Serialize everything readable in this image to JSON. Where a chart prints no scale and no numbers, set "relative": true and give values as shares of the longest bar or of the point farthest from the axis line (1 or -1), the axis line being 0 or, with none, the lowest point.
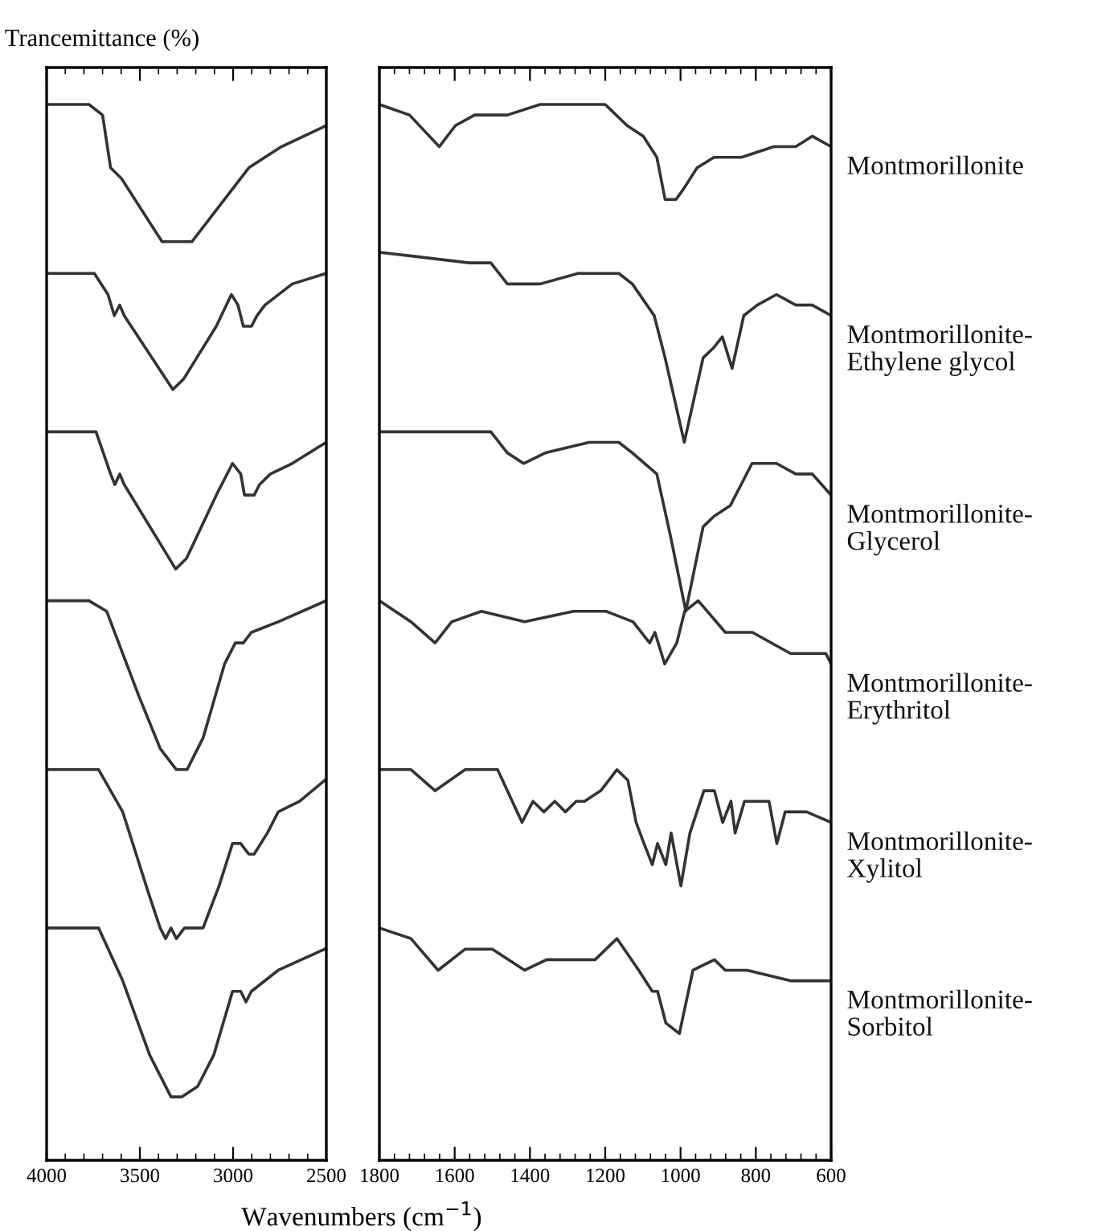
{
  "chart_data": [
    {
      "type": "line",
      "relative": true,
      "ylabel": "Trancemittance (%)",
      "xlabel": "Wavenumbers (cm$^{−1}$)",
      "xlim": [
        4000,
        2500
      ],
      "xticks": [
        4000,
        3500,
        3000,
        2500
      ],
      "grid": false,
      "legend": false,
      "series": [
        {
          "color": "#333333",
          "x": [
            4000,
            3773,
            3700,
            3657,
            3599,
            3381,
            3294,
            3221,
            3090,
            2916,
            2741,
            2500
          ],
          "values": [
            1.0,
            1.0,
            0.99,
            0.94,
            0.93,
            0.87,
            0.87,
            0.87,
            0.9,
            0.94,
            0.96,
            0.98
          ]
        },
        {
          "color": "#333333",
          "x": [
            4000,
            3744,
            3671,
            3637,
            3608,
            3584,
            3323,
            3265,
            3090,
            3009,
            2974,
            2945,
            2922,
            2901,
            2872,
            2829,
            2683,
            2500
          ],
          "values": [
            0.84,
            0.84,
            0.82,
            0.8,
            0.81,
            0.8,
            0.73,
            0.74,
            0.79,
            0.82,
            0.81,
            0.79,
            0.79,
            0.79,
            0.8,
            0.81,
            0.83,
            0.84
          ]
        },
        {
          "color": "#333333",
          "x": [
            4000,
            3735,
            3657,
            3634,
            3608,
            3584,
            3308,
            3250,
            3090,
            3003,
            2959,
            2939,
            2910,
            2887,
            2858,
            2800,
            2683,
            2500
          ],
          "values": [
            0.69,
            0.69,
            0.65,
            0.64,
            0.65,
            0.64,
            0.56,
            0.57,
            0.63,
            0.66,
            0.65,
            0.63,
            0.63,
            0.63,
            0.64,
            0.65,
            0.66,
            0.68
          ]
        },
        {
          "color": "#333333",
          "x": [
            4000,
            3773,
            3678,
            3506,
            3391,
            3304,
            3247,
            3161,
            3046,
            2988,
            2945,
            2902,
            2758,
            2500
          ],
          "values": [
            0.53,
            0.53,
            0.52,
            0.44,
            0.39,
            0.37,
            0.37,
            0.4,
            0.47,
            0.49,
            0.49,
            0.5,
            0.51,
            0.53
          ]
        },
        {
          "color": "#333333",
          "x": [
            4000,
            3721,
            3592,
            3448,
            3391,
            3362,
            3333,
            3304,
            3261,
            3161,
            3075,
            3003,
            2959,
            2916,
            2887,
            2816,
            2758,
            2643,
            2508
          ],
          "values": [
            0.37,
            0.37,
            0.33,
            0.25,
            0.22,
            0.21,
            0.22,
            0.21,
            0.22,
            0.22,
            0.26,
            0.3,
            0.3,
            0.29,
            0.29,
            0.31,
            0.33,
            0.34,
            0.36
          ]
        },
        {
          "color": "#333333",
          "x": [
            4000,
            3721,
            3592,
            3448,
            3333,
            3276,
            3190,
            3103,
            3003,
            2959,
            2931,
            2902,
            2758,
            2508
          ],
          "values": [
            0.22,
            0.22,
            0.17,
            0.1,
            0.06,
            0.06,
            0.07,
            0.1,
            0.16,
            0.16,
            0.15,
            0.16,
            0.18,
            0.2
          ]
        }
      ]
    },
    {
      "type": "line",
      "relative": true,
      "xlim": [
        1800,
        600
      ],
      "xticks": [
        1800,
        1600,
        1400,
        1200,
        1000,
        800,
        600
      ],
      "grid": false,
      "legend": false,
      "series": [
        {
          "name": "Montmorillonite",
          "color": "#333333",
          "x": [
            1800,
            1720,
            1641,
            1598,
            1547,
            1460,
            1373,
            1200,
            1142,
            1099,
            1063,
            1041,
            1012,
            992,
            956,
            911,
            838,
            752,
            694,
            650,
            600
          ],
          "values": [
            1.0,
            0.99,
            0.96,
            0.98,
            0.99,
            0.99,
            1.0,
            1.0,
            0.98,
            0.97,
            0.95,
            0.91,
            0.91,
            0.92,
            0.94,
            0.95,
            0.95,
            0.96,
            0.96,
            0.97,
            0.96
          ]
        },
        {
          "name": "Montmorillonite-\nEthylene glycol",
          "color": "#333333",
          "x": [
            1800,
            1561,
            1504,
            1460,
            1417,
            1373,
            1272,
            1164,
            1128,
            1070,
            1041,
            990,
            940,
            911,
            889,
            863,
            832,
            796,
            745,
            694,
            650,
            600
          ],
          "values": [
            0.86,
            0.85,
            0.85,
            0.83,
            0.83,
            0.83,
            0.84,
            0.84,
            0.83,
            0.8,
            0.76,
            0.68,
            0.76,
            0.77,
            0.78,
            0.75,
            0.8,
            0.81,
            0.82,
            0.81,
            0.81,
            0.8
          ]
        },
        {
          "name": "Montmorillonite-\nGlycerol",
          "color": "#333333",
          "x": [
            1800,
            1692,
            1634,
            1576,
            1504,
            1460,
            1417,
            1359,
            1243,
            1164,
            1128,
            1063,
            1026,
            986,
            940,
            911,
            868,
            810,
            745,
            694,
            650,
            600
          ],
          "values": [
            0.69,
            0.69,
            0.69,
            0.69,
            0.69,
            0.67,
            0.66,
            0.67,
            0.68,
            0.68,
            0.67,
            0.65,
            0.59,
            0.52,
            0.6,
            0.61,
            0.62,
            0.66,
            0.66,
            0.65,
            0.65,
            0.63
          ]
        },
        {
          "name": "Montmorillonite-\nErythritol",
          "color": "#333333",
          "x": [
            1800,
            1716,
            1652,
            1608,
            1529,
            1414,
            1284,
            1198,
            1126,
            1082,
            1068,
            1042,
            1010,
            989,
            953,
            881,
            809,
            708,
            614,
            600
          ],
          "values": [
            0.53,
            0.51,
            0.49,
            0.51,
            0.52,
            0.51,
            0.52,
            0.52,
            0.51,
            0.49,
            0.5,
            0.47,
            0.49,
            0.52,
            0.53,
            0.5,
            0.5,
            0.48,
            0.48,
            0.47
          ]
        },
        {
          "name": "Montmorillonite-\nXylitol",
          "color": "#333333",
          "x": [
            1800,
            1716,
            1652,
            1572,
            1486,
            1421,
            1392,
            1363,
            1334,
            1306,
            1277,
            1255,
            1212,
            1169,
            1140,
            1118,
            1097,
            1075,
            1061,
            1039,
            1025,
            999,
            975,
            938,
            910,
            888,
            866,
            855,
            830,
            765,
            744,
            722,
            665,
            600
          ],
          "values": [
            0.37,
            0.37,
            0.35,
            0.37,
            0.37,
            0.32,
            0.34,
            0.33,
            0.34,
            0.33,
            0.34,
            0.34,
            0.35,
            0.37,
            0.36,
            0.32,
            0.3,
            0.28,
            0.3,
            0.28,
            0.31,
            0.26,
            0.31,
            0.35,
            0.35,
            0.32,
            0.34,
            0.31,
            0.34,
            0.34,
            0.3,
            0.33,
            0.33,
            0.32
          ]
        },
        {
          "name": "Montmorillonite-\nSorbitol",
          "color": "#333333",
          "x": [
            1800,
            1716,
            1644,
            1572,
            1500,
            1414,
            1356,
            1227,
            1169,
            1111,
            1075,
            1061,
            1039,
            1003,
            967,
            910,
            881,
            823,
            708,
            600
          ],
          "values": [
            0.22,
            0.21,
            0.18,
            0.2,
            0.2,
            0.18,
            0.19,
            0.19,
            0.21,
            0.18,
            0.16,
            0.16,
            0.13,
            0.12,
            0.18,
            0.19,
            0.18,
            0.18,
            0.17,
            0.17
          ]
        }
      ]
    }
  ]
}
